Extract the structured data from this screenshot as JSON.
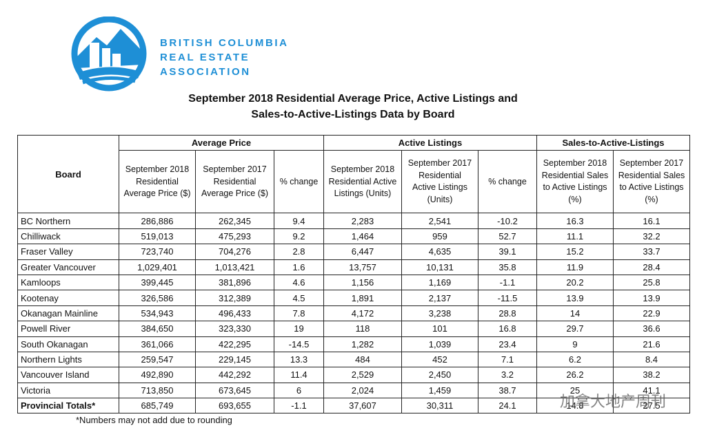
{
  "header": {
    "org_lines": [
      "BRITISH COLUMBIA",
      "REAL ESTATE",
      "ASSOCIATION"
    ],
    "title_lines": [
      "September 2018 Residential Average Price, Active Listings and",
      "Sales-to-Active-Listings Data by Board"
    ]
  },
  "table": {
    "board_header": "Board",
    "groups": [
      "Average Price",
      "Active Listings",
      "Sales-to-Active-Listings"
    ],
    "columns": [
      "September 2018 Residential Average Price ($)",
      "September 2017 Residential Average Price ($)",
      "% change",
      "September 2018 Residential Active Listings (Units)",
      "September 2017 Residential Active Listings (Units)",
      "% change",
      "September 2018 Residential Sales to Active Listings (%)",
      "September 2017 Residential Sales to Active Listings (%)"
    ],
    "rows": [
      [
        "BC Northern",
        "286,886",
        "262,345",
        "9.4",
        "2,283",
        "2,541",
        "-10.2",
        "16.3",
        "16.1"
      ],
      [
        "Chilliwack",
        "519,013",
        "475,293",
        "9.2",
        "1,464",
        "959",
        "52.7",
        "11.1",
        "32.2"
      ],
      [
        "Fraser Valley",
        "723,740",
        "704,276",
        "2.8",
        "6,447",
        "4,635",
        "39.1",
        "15.2",
        "33.7"
      ],
      [
        "Greater Vancouver",
        "1,029,401",
        "1,013,421",
        "1.6",
        "13,757",
        "10,131",
        "35.8",
        "11.9",
        "28.4"
      ],
      [
        "Kamloops",
        "399,445",
        "381,896",
        "4.6",
        "1,156",
        "1,169",
        "-1.1",
        "20.2",
        "25.8"
      ],
      [
        "Kootenay",
        "326,586",
        "312,389",
        "4.5",
        "1,891",
        "2,137",
        "-11.5",
        "13.9",
        "13.9"
      ],
      [
        "Okanagan Mainline",
        "534,943",
        "496,433",
        "7.8",
        "4,172",
        "3,238",
        "28.8",
        "14",
        "22.9"
      ],
      [
        "Powell River",
        "384,650",
        "323,330",
        "19",
        "118",
        "101",
        "16.8",
        "29.7",
        "36.6"
      ],
      [
        "South Okanagan",
        "361,066",
        "422,295",
        "-14.5",
        "1,282",
        "1,039",
        "23.4",
        "9",
        "21.6"
      ],
      [
        "Northern Lights",
        "259,547",
        "229,145",
        "13.3",
        "484",
        "452",
        "7.1",
        "6.2",
        "8.4"
      ],
      [
        "Vancouver Island",
        "492,890",
        "442,292",
        "11.4",
        "2,529",
        "2,450",
        "3.2",
        "26.2",
        "38.2"
      ],
      [
        "Victoria",
        "713,850",
        "673,645",
        "6",
        "2,024",
        "1,459",
        "38.7",
        "25",
        "41.1"
      ],
      [
        "Provincial Totals*",
        "685,749",
        "693,655",
        "-1.1",
        "37,607",
        "30,311",
        "24.1",
        "14.8",
        "27.5"
      ]
    ],
    "footnote": "*Numbers may not add due to rounding"
  },
  "watermark": "加拿大地产周刊"
}
